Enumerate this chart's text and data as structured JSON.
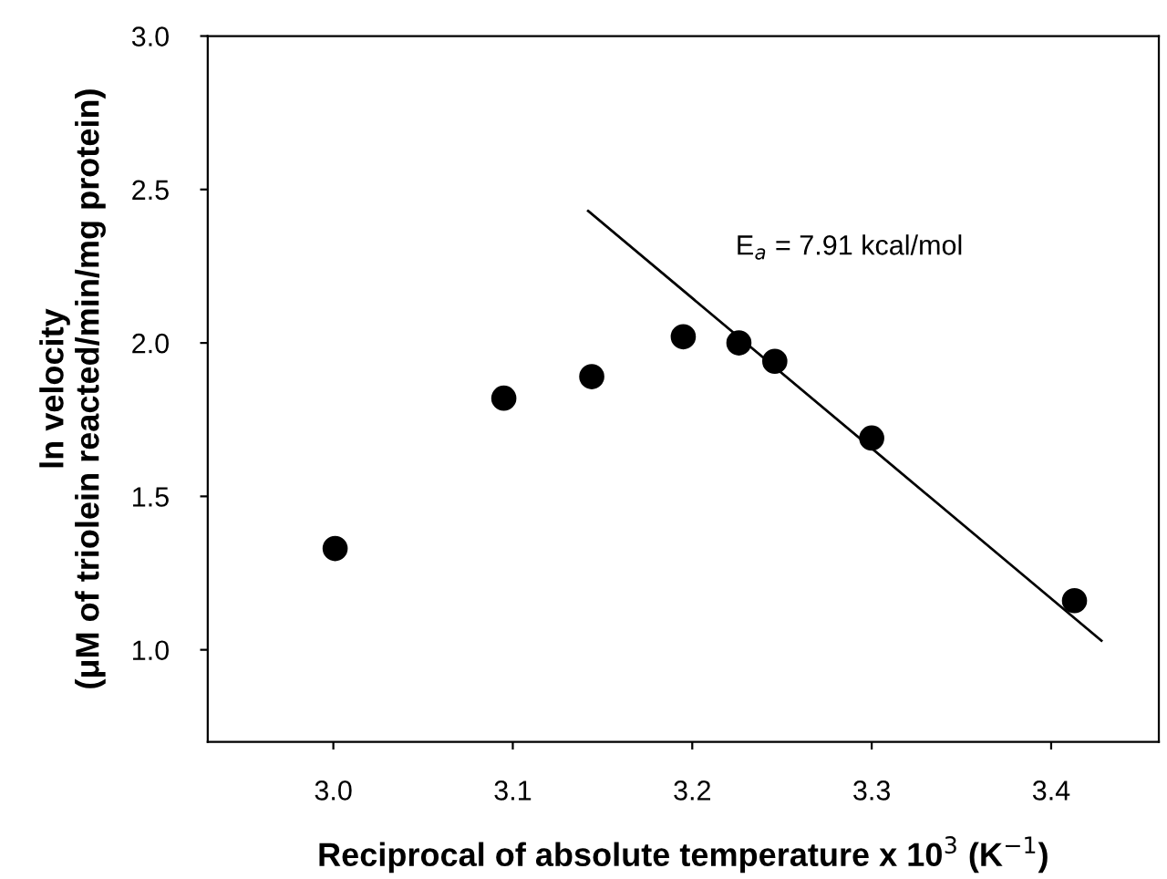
{
  "chart_data": {
    "type": "scatter",
    "xlabel": "Reciprocal of absolute temperature x 10$^{3}$ (K$^{−1}$)",
    "ylabel": "ln velocity\n(μM of triolein reacted/min/mg protein)",
    "x": [
      3.001,
      3.095,
      3.144,
      3.195,
      3.226,
      3.246,
      3.3,
      3.413
    ],
    "series": [
      {
        "color": "#000000",
        "marker": "circle",
        "values": [
          1.33,
          1.82,
          1.89,
          2.02,
          2.0,
          1.94,
          1.69,
          1.16
        ]
      },
      {
        "type": "line",
        "color": "#000000",
        "marker": "none",
        "line_style": "solid",
        "x": [
          3.142,
          3.428
        ],
        "values": [
          2.43,
          1.03
        ]
      }
    ],
    "annotations": [
      "E$_{a}$ = 7.91 kcal/mol"
    ],
    "xlim": [
      2.93,
      3.46
    ],
    "ylim": [
      0.7,
      3.0
    ],
    "xticks": [
      {
        "value": 3,
        "label": "3.0"
      },
      3.1,
      3.2,
      3.3,
      3.4
    ],
    "yticks": [
      {
        "value": 1,
        "label": "1.0"
      },
      1.5,
      {
        "value": 2,
        "label": "2.0"
      },
      2.5,
      {
        "value": 3,
        "label": "3.0"
      }
    ],
    "grid": false,
    "legend": false
  }
}
